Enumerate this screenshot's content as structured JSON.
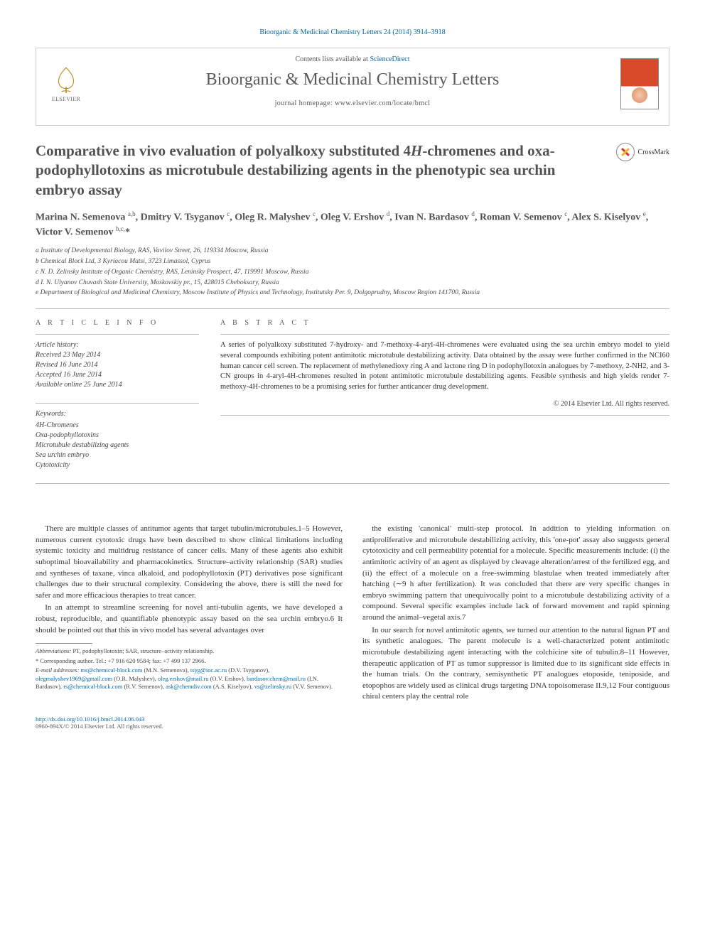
{
  "colors": {
    "link": "#0066aa",
    "text": "#333333",
    "title": "#52524f",
    "rule": "#bbbbbb",
    "cover_top": "#d94a2a"
  },
  "typography": {
    "body_family": "Georgia, 'Times New Roman', serif",
    "title_size_pt": 21,
    "journal_size_pt": 24,
    "body_size_pt": 11,
    "footnote_size_pt": 8.5
  },
  "header": {
    "citation": "Bioorganic & Medicinal Chemistry Letters 24 (2014) 3914–3918",
    "contents_prefix": "Contents lists available at ",
    "contents_link": "ScienceDirect",
    "journal": "Bioorganic & Medicinal Chemistry Letters",
    "homepage_label": "journal homepage: ",
    "homepage_url": "www.elsevier.com/locate/bmcl",
    "publisher_logo_text": "ELSEVIER"
  },
  "crossmark": {
    "label": "CrossMark"
  },
  "title_html": "Comparative in vivo evaluation of polyalkoxy substituted 4<span class=\"ital\">H</span>-chromenes and oxa-podophyllotoxins as microtubule destabilizing agents in the phenotypic sea urchin embryo assay",
  "authors_html": "Marina N. Semenova <sup>a,b</sup>, Dmitry V. Tsyganov <sup>c</sup>, Oleg R. Malyshev <sup>c</sup>, Oleg V. Ershov <sup>d</sup>, Ivan N. Bardasov <sup>d</sup>, Roman V. Semenov <sup>c</sup>, Alex S. Kiselyov <sup>e</sup>, Victor V. Semenov <sup>b,c,</sup><span class=\"star\">*</span>",
  "affiliations": [
    "a Institute of Developmental Biology, RAS, Vavilov Street, 26, 119334 Moscow, Russia",
    "b Chemical Block Ltd, 3 Kyriacou Matsi, 3723 Limassol, Cyprus",
    "c N. D. Zelinsky Institute of Organic Chemistry, RAS, Leninsky Prospect, 47, 119991 Moscow, Russia",
    "d I. N. Ulyanov Chuvash State University, Moskovskiy pr., 15, 428015 Cheboksary, Russia",
    "e Department of Biological and Medicinal Chemistry, Moscow Institute of Physics and Technology, Institutsky Per. 9, Dolgoprudny, Moscow Region 141700, Russia"
  ],
  "article_info": {
    "heading": "A R T I C L E   I N F O",
    "history_label": "Article history:",
    "history": [
      "Received 23 May 2014",
      "Revised 16 June 2014",
      "Accepted 16 June 2014",
      "Available online 25 June 2014"
    ],
    "keywords_label": "Keywords:",
    "keywords": [
      "4H-Chromenes",
      "Oxa-podophyllotoxins",
      "Microtubule destabilizing agents",
      "Sea urchin embryo",
      "Cytotoxicity"
    ]
  },
  "abstract": {
    "heading": "A B S T R A C T",
    "text": "A series of polyalkoxy substituted 7-hydroxy- and 7-methoxy-4-aryl-4H-chromenes were evaluated using the sea urchin embryo model to yield several compounds exhibiting potent antimitotic microtubule destabilizing activity. Data obtained by the assay were further confirmed in the NCI60 human cancer cell screen. The replacement of methylenedioxy ring A and lactone ring D in podophyllotoxin analogues by 7-methoxy, 2-NH2, and 3-CN groups in 4-aryl-4H-chromenes resulted in potent antimitotic microtubule destabilizing agents. Feasible synthesis and high yields render 7-methoxy-4H-chromenes to be a promising series for further anticancer drug development.",
    "copyright": "© 2014 Elsevier Ltd. All rights reserved."
  },
  "body": {
    "p1": "There are multiple classes of antitumor agents that target tubulin/microtubules.1–5 However, numerous current cytotoxic drugs have been described to show clinical limitations including systemic toxicity and multidrug resistance of cancer cells. Many of these agents also exhibit suboptimal bioavailability and pharmacokinetics. Structure–activity relationship (SAR) studies and syntheses of taxane, vinca alkaloid, and podophyllotoxin (PT) derivatives pose significant challenges due to their structural complexity. Considering the above, there is still the need for safer and more efficacious therapies to treat cancer.",
    "p2": "In an attempt to streamline screening for novel anti-tubulin agents, we have developed a robust, reproducible, and quantifiable phenotypic assay based on the sea urchin embryo.6 It should be pointed out that this in vivo model has several advantages over",
    "p3": "the existing 'canonical' multi-step protocol. In addition to yielding information on antiproliferative and microtubule destabilizing activity, this 'one-pot' assay also suggests general cytotoxicity and cell permeability potential for a molecule. Specific measurements include: (i) the antimitotic activity of an agent as displayed by cleavage alteration/arrest of the fertilized egg, and (ii) the effect of a molecule on a free-swimming blastulae when treated immediately after hatching (∼9 h after fertilization). It was concluded that there are very specific changes in embryo swimming pattern that unequivocally point to a microtubule destabilizing activity of a compound. Several specific examples include lack of forward movement and rapid spinning around the animal–vegetal axis.7",
    "p4": "In our search for novel antimitotic agents, we turned our attention to the natural lignan PT and its synthetic analogues. The parent molecule is a well-characterized potent antimitotic microtubule destabilizing agent interacting with the colchicine site of tubulin.8–11 However, therapeutic application of PT as tumor suppressor is limited due to its significant side effects in the human trials. On the contrary, semisynthetic PT analogues etoposide, teniposide, and etopophos are widely used as clinical drugs targeting DNA topoisomerase II.9,12 Four contiguous chiral centers play the central role"
  },
  "footnotes": {
    "abbrev_label": "Abbreviations:",
    "abbrev_text": "PT, podophyllotoxin; SAR, structure–activity relationship.",
    "corr_label": "* Corresponding author. Tel.: +7 916 620 9584; fax: +7 499 137 2966.",
    "email_label": "E-mail addresses:",
    "emails_html": "<a>ms@chemical-block.com</a> (M.N. Semenova), <a>tsyg@ioc.ac.ru</a> (D.V. Tsyganov), <a>olegmalyshev1969@gmail.com</a> (O.R. Malyshev), <a>oleg.ershov@mail.ru</a> (O.V. Ershov), <a>bardasov.chem@mail.ru</a> (I.N. Bardasov), <a>rs@chemical-block.com</a> (R.V. Semenov), <a>ask@chemdiv.com</a> (A.S. Kiselyov), <a>vs@zelinsky.ru</a> (V.V. Semenov)."
  },
  "footer": {
    "doi": "http://dx.doi.org/10.1016/j.bmcl.2014.06.043",
    "issn": "0960-894X/© 2014 Elsevier Ltd. All rights reserved."
  }
}
